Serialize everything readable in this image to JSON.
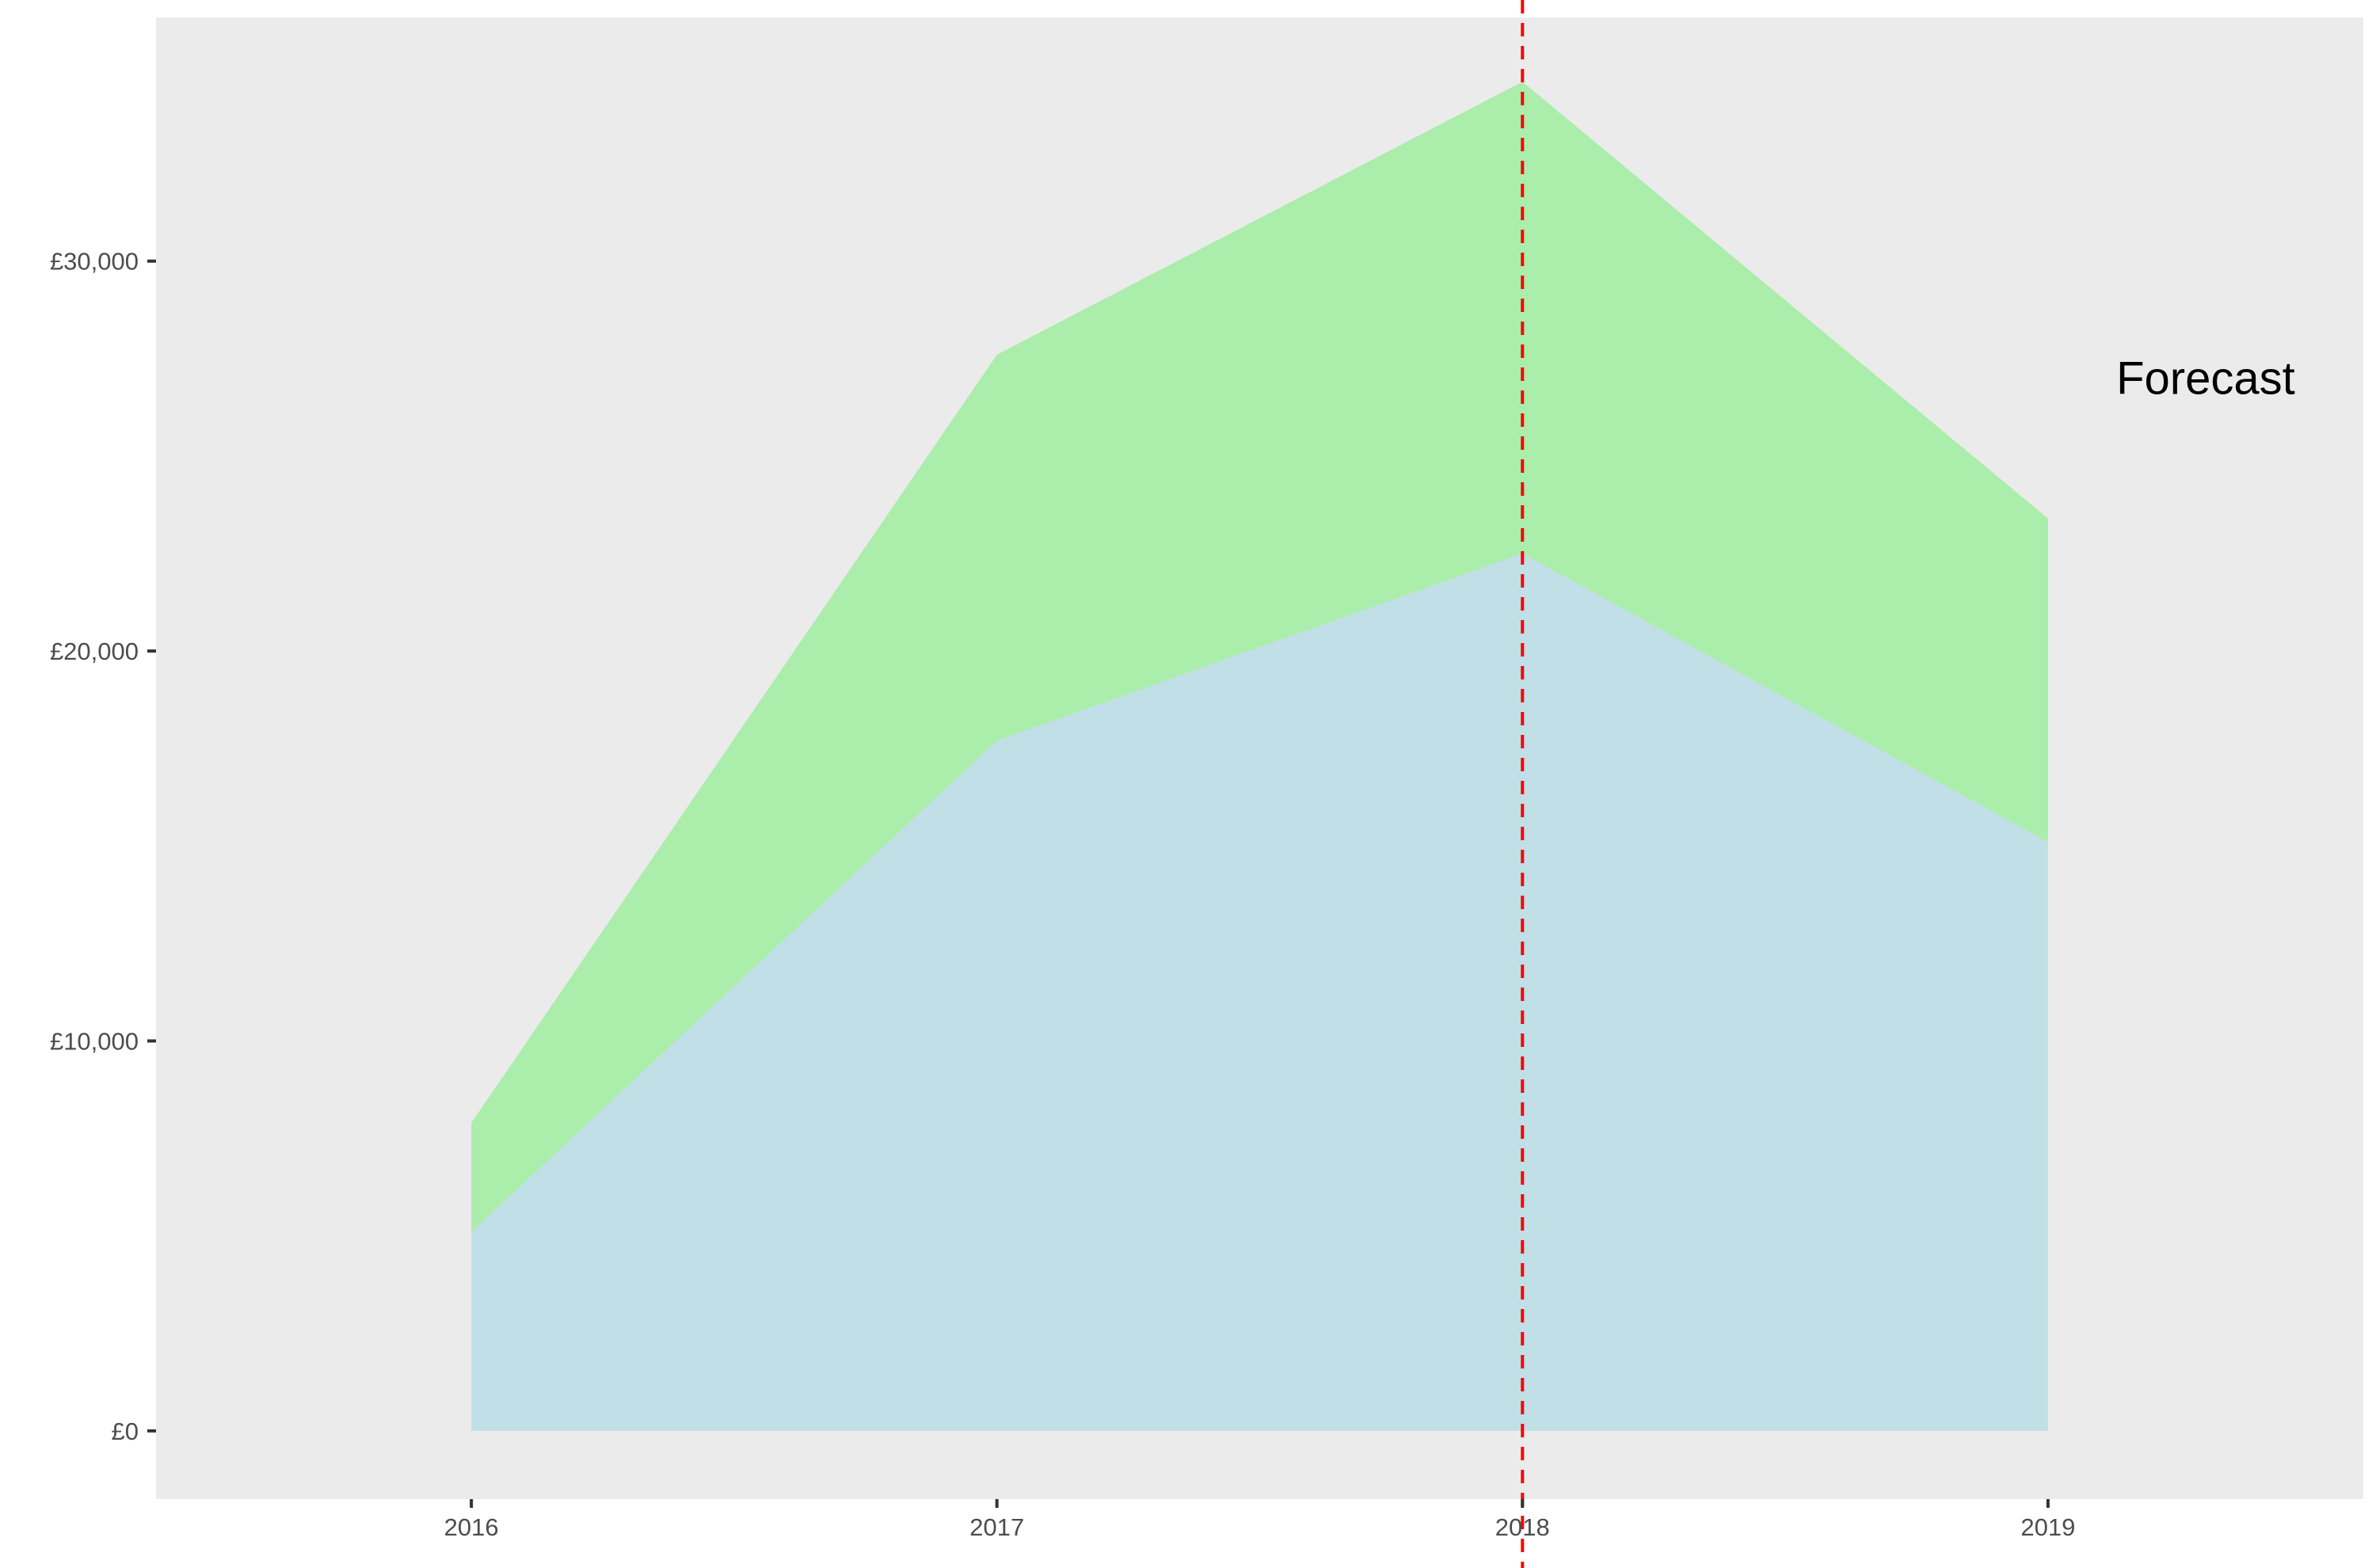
{
  "chart_data": {
    "type": "area",
    "stacked": true,
    "x": [
      2016,
      2017,
      2018,
      2019
    ],
    "series": [
      {
        "values": [
          5100,
          17700,
          22500,
          15100
        ],
        "color": "#c0dfe7"
      },
      {
        "values": [
          2800,
          9900,
          12100,
          8300
        ],
        "color": "#abedab"
      }
    ],
    "title": "",
    "xlabel": "",
    "ylabel": "",
    "xlim": [
      2015.4,
      2019.6
    ],
    "ylim": [
      -1750,
      36250
    ],
    "x_ticks": [
      2016,
      2017,
      2018,
      2019
    ],
    "x_tick_labels": [
      "2016",
      "2017",
      "2018",
      "2019"
    ],
    "y_ticks": [
      0,
      10000,
      20000,
      30000
    ],
    "y_tick_labels": [
      "£0",
      "£10,000",
      "£20,000",
      "£30,000"
    ],
    "panel_background": "#ebebeb",
    "grid": false,
    "legend": "none",
    "reference_line": {
      "x": 2018,
      "color": "#ff0000",
      "style": "dashed"
    },
    "annotations": [
      {
        "text": "Forecast",
        "x": 2019.3,
        "y": 27000
      }
    ]
  }
}
